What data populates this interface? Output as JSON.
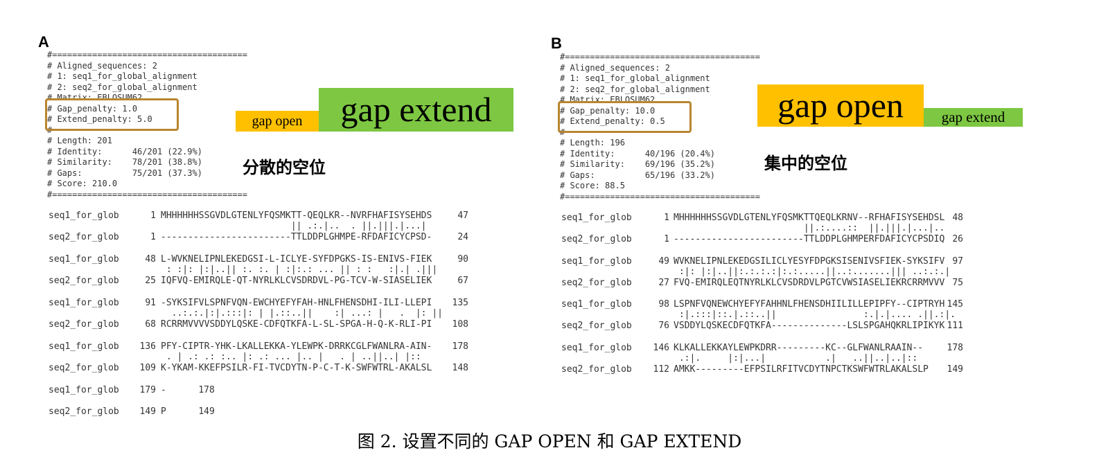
{
  "panels": [
    {
      "label": "A",
      "header": [
        "#=======================================",
        "# Aligned_sequences: 2",
        "# 1: seq1_for_global_alignment",
        "# 2: seq2_for_global_alignment",
        "# Matrix: EBLOSUM62",
        "# Gap_penalty: 1.0",
        "# Extend_penalty: 5.0",
        "#",
        "# Length: 201",
        "# Identity:      46/201 (22.9%)",
        "# Similarity:    78/201 (38.8%)",
        "# Gaps:          75/201 (37.3%)",
        "# Score: 210.0",
        "#======================================="
      ],
      "annotations": {
        "gap_open": "gap open",
        "gap_extend": "gap extend",
        "note": "分散的空位"
      },
      "alignment": [
        {
          "seq1": {
            "name": "seq1_for_glob",
            "start": "1",
            "sequence": "MHHHHHHSSGVDLGTENLYFQSMKTT-QEQLKR--NVRFHAFISYSEHDS",
            "end": "47"
          },
          "match": "                        || .:.|..  . ||.|||.|...|",
          "seq2": {
            "name": "seq2_for_glob",
            "start": "1",
            "sequence": "------------------------TTLDDPLGHMPE-RFDAFICYCPSD-",
            "end": "24"
          }
        },
        {
          "seq1": {
            "name": "seq1_for_glob",
            "start": "48",
            "sequence": "L-WVKNELIPNLEKEDGSI-L-ICLYE-SYFDPGKS-IS-ENIVS-FIEK",
            "end": "90"
          },
          "match": " : :|: |:|..|| :. :. | :|:.: ... || : :   :|.| .|||",
          "seq2": {
            "name": "seq2_for_glob",
            "start": "25",
            "sequence": "IQFVQ-EMIRQLE-QT-NYRLKLCVSDRDVL-PG-TCV-W-SIASELIEK",
            "end": "67"
          }
        },
        {
          "seq1": {
            "name": "seq1_for_glob",
            "start": "91",
            "sequence": "-SYKSIFVLSPNFVQN-EWCHYEFYFAH-HNLFHENSDHI-ILI-LLEPI",
            "end": "135"
          },
          "match": "  ..:.:.|:|.:::|: | |.::..||    :| ...: |   .  |: ||",
          "seq2": {
            "name": "seq2_for_glob",
            "start": "68",
            "sequence": "RCRRMVVVVSDDYLQSKE-CDFQTKFA-L-SL-SPGA-H-Q-K-RLI-PI",
            "end": "108"
          }
        },
        {
          "seq1": {
            "name": "seq1_for_glob",
            "start": "136",
            "sequence": "PFY-CIPTR-YHK-LKALLEKKA-YLEWPK-DRRKCGLFWANLRA-AIN-",
            "end": "178"
          },
          "match": " . | .: .: :.. |: .: ... |.. |   . | ..||..| |::",
          "seq2": {
            "name": "seq2_for_glob",
            "start": "109",
            "sequence": "K-YKAM-KKEFPSILR-FI-TVCDYTN-P-C-T-K-SWFWTRL-AKALSL",
            "end": "148"
          }
        },
        {
          "seq1": {
            "name": "seq1_for_glob",
            "start": "179",
            "sequence": "-",
            "end": "178"
          },
          "seq2": {
            "name": "seq2_for_glob",
            "start": "149",
            "sequence": "P",
            "end": "149"
          }
        }
      ]
    },
    {
      "label": "B",
      "header": [
        "#=======================================",
        "# Aligned_sequences: 2",
        "# 1: seq1_for_global_alignment",
        "# 2: seq2_for_global_alignment",
        "# Matrix: EBLOSUM62",
        "# Gap_penalty: 10.0",
        "# Extend_penalty: 0.5",
        "#",
        "# Length: 196",
        "# Identity:      40/196 (20.4%)",
        "# Similarity:    69/196 (35.2%)",
        "# Gaps:          65/196 (33.2%)",
        "# Score: 88.5",
        "#======================================="
      ],
      "annotations": {
        "gap_open": "gap open",
        "gap_extend": "gap extend",
        "note": "集中的空位"
      },
      "alignment": [
        {
          "seq1": {
            "name": "seq1_for_glob",
            "start": "1",
            "sequence": "MHHHHHHSSGVDLGTENLYFQSMKTTQEQLKRNV--RFHAFISYSEHDSL",
            "end": "48"
          },
          "match": "                        ||.:....::  ||.|||.|...|..",
          "seq2": {
            "name": "seq2_for_glob",
            "start": "1",
            "sequence": "------------------------TTLDDPLGHMPERFDAFICYCPSDIQ",
            "end": "26"
          }
        },
        {
          "seq1": {
            "name": "seq1_for_glob",
            "start": "49",
            "sequence": "WVKNELIPNLEKEDGSILICLYESYFDPGKSISENIVSFIEK-SYKSIFV",
            "end": "97"
          },
          "match": " :|: |:|..||:.:.:.:|:.:.....||..:.......||| ..:.:.|",
          "seq2": {
            "name": "seq2_for_glob",
            "start": "27",
            "sequence": "FVQ-EMIRQLEQTNYRLKLCVSDRDVLPGTCVWSIASELIEKRCRRMVVV",
            "end": "75"
          }
        },
        {
          "seq1": {
            "name": "seq1_for_glob",
            "start": "98",
            "sequence": "LSPNFVQNEWCHYEFYFAHHNLFHENSDHIILILLEPIPFY--CIPTRYH",
            "end": "145"
          },
          "match": " :|.:::|::.|.::..||                :.|.|.... .||.:|.",
          "seq2": {
            "name": "seq2_for_glob",
            "start": "76",
            "sequence": "VSDDYLQSKECDFQTKFA--------------LSLSPGAHQKRLIPIKYK",
            "end": "111"
          }
        },
        {
          "seq1": {
            "name": "seq1_for_glob",
            "start": "146",
            "sequence": "KLKALLEKKAYLEWPKDRR---------KC--GLFWANLRAAIN--",
            "end": "178"
          },
          "match": " .:|.     |:|...|           .|   ..||..|..|::",
          "seq2": {
            "name": "seq2_for_glob",
            "start": "112",
            "sequence": "AMKK---------EFPSILRFITVCDYTNPCTKSWFWTRLAKALSLP",
            "end": "149"
          }
        }
      ]
    }
  ],
  "caption": "图 2. 设置不同的 GAP OPEN 和 GAP EXTEND"
}
